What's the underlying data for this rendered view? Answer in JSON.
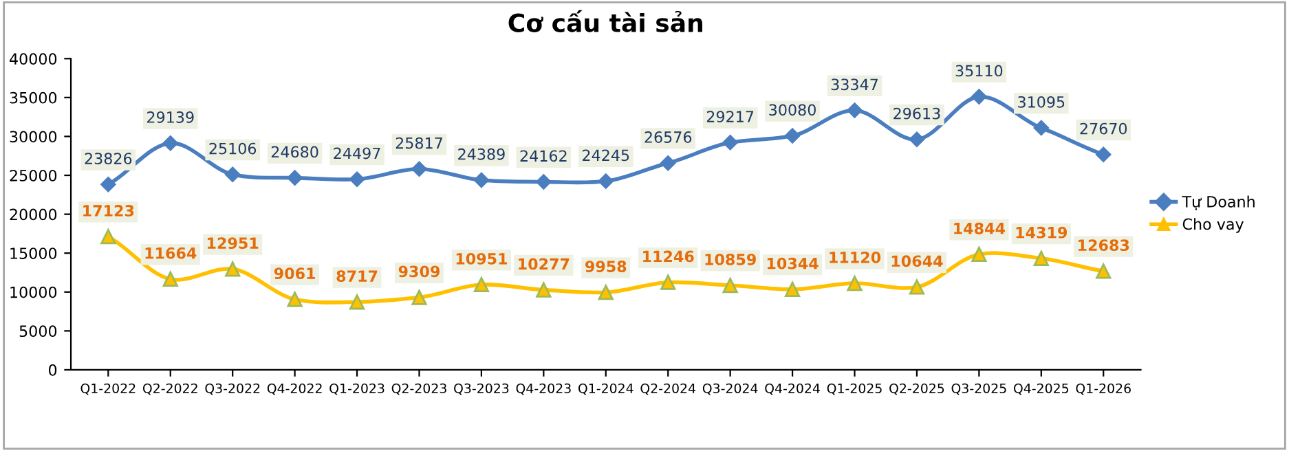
{
  "chart_data": {
    "type": "line",
    "title": "Cơ cấu tài sản",
    "categories": [
      "Q1-2022",
      "Q2-2022",
      "Q3-2022",
      "Q4-2022",
      "Q1-2023",
      "Q2-2023",
      "Q3-2023",
      "Q4-2023",
      "Q1-2024",
      "Q2-2024",
      "Q3-2024",
      "Q4-2024",
      "Q1-2025",
      "Q2-2025",
      "Q3-2025",
      "Q4-2025",
      "Q1-2026"
    ],
    "series": [
      {
        "name": "Tự Doanh",
        "color": "#4a7ebf",
        "marker": "diamond",
        "values": [
          23826,
          29139,
          25106,
          24680,
          24497,
          25817,
          24389,
          24162,
          24245,
          26576,
          29217,
          30080,
          33347,
          29613,
          35110,
          31095,
          27670
        ]
      },
      {
        "name": "Cho vay",
        "color": "#ffc000",
        "marker": "triangle",
        "values": [
          17123,
          11664,
          12951,
          9061,
          8717,
          9309,
          10951,
          10277,
          9958,
          11246,
          10859,
          10344,
          11120,
          10644,
          14844,
          14319,
          12683
        ]
      }
    ],
    "ylim": [
      0,
      40000
    ],
    "yticks": [
      0,
      5000,
      10000,
      15000,
      20000,
      25000,
      30000,
      35000,
      40000
    ],
    "data_labels": true,
    "grid": false,
    "legend": "right",
    "line_style": "solid"
  }
}
